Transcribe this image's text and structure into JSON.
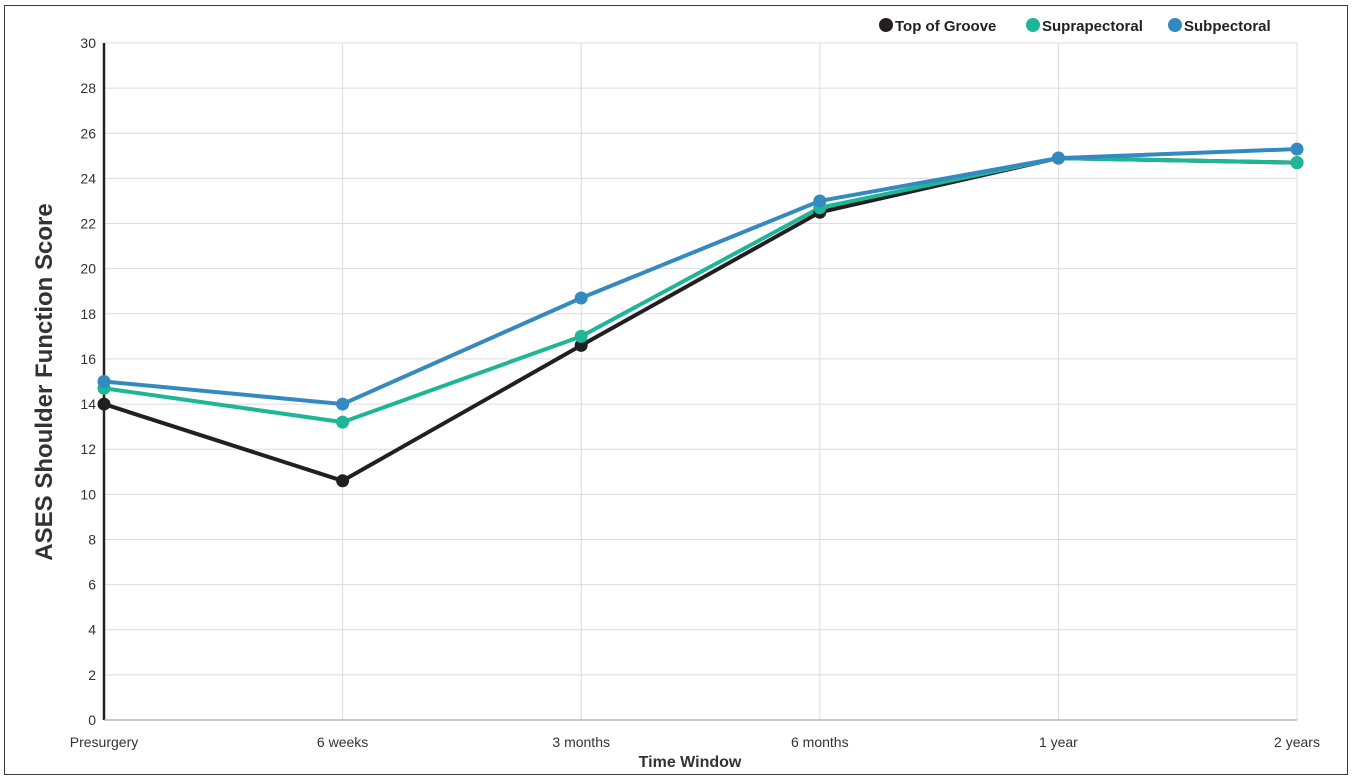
{
  "chart_data": {
    "type": "line",
    "title": "",
    "xlabel": "Time Window",
    "ylabel": "ASES Shoulder Function Score",
    "categories": [
      "Presurgery",
      "6 weeks",
      "3 months",
      "6 months",
      "1 year",
      "2 years"
    ],
    "ylim": [
      0,
      30
    ],
    "yticks": [
      "0",
      "2",
      "4",
      "6",
      "8",
      "10",
      "12",
      "14",
      "16",
      "18",
      "20",
      "22",
      "24",
      "26",
      "28",
      "30"
    ],
    "grid": true,
    "legend_position": "top-right",
    "series": [
      {
        "name": "Top of Groove",
        "color": "#231f20",
        "values": [
          14.0,
          10.6,
          16.6,
          22.5,
          24.9,
          24.7
        ]
      },
      {
        "name": "Suprapectoral",
        "color": "#1fb597",
        "values": [
          14.7,
          13.2,
          17.0,
          22.7,
          24.9,
          24.7
        ]
      },
      {
        "name": "Subpectoral",
        "color": "#3489c0",
        "values": [
          15.0,
          14.0,
          18.7,
          23.0,
          24.9,
          25.3
        ]
      }
    ]
  }
}
